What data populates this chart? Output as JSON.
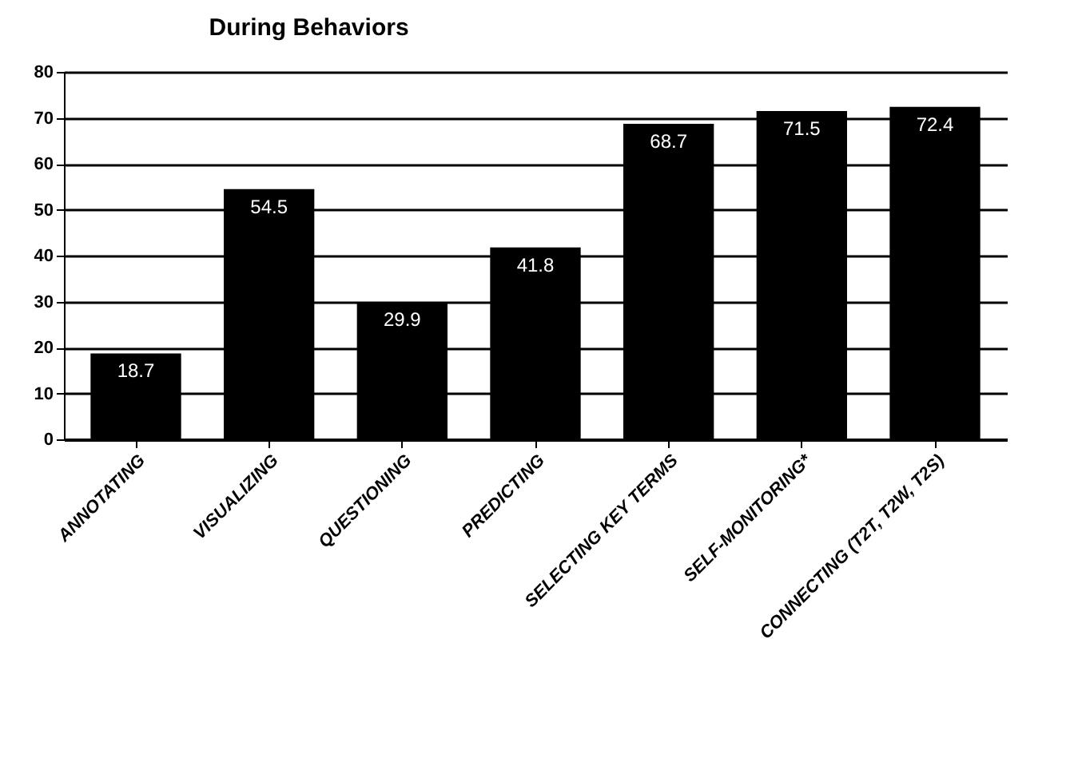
{
  "chart_data": {
    "type": "bar",
    "title": "During Behaviors",
    "categories": [
      "ANNOTATING",
      "VISUALIZING",
      "QUESTIONING",
      "PREDICTING",
      "SELECTING KEY TERMS",
      "SELF-MONITORING*",
      "CONNECTING (T2T, T2W, T2S)"
    ],
    "values": [
      18.7,
      54.5,
      29.9,
      41.8,
      68.7,
      71.5,
      72.4
    ],
    "color": "#000000",
    "ylim": [
      0,
      80
    ],
    "yticks": [
      0,
      10,
      20,
      30,
      40,
      50,
      60,
      70,
      80
    ],
    "grid": "y",
    "data_labels": true
  }
}
